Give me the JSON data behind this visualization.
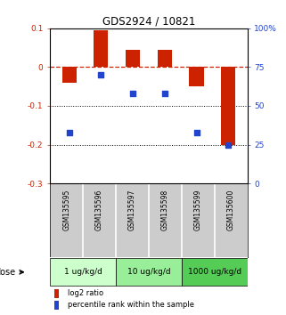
{
  "title": "GDS2924 / 10821",
  "samples": [
    "GSM135595",
    "GSM135596",
    "GSM135597",
    "GSM135598",
    "GSM135599",
    "GSM135600"
  ],
  "log2_ratio": [
    -0.04,
    0.095,
    0.045,
    0.045,
    -0.05,
    -0.2
  ],
  "percentile_rank": [
    33,
    70,
    58,
    58,
    33,
    25
  ],
  "bar_color": "#cc2200",
  "dot_color": "#2244cc",
  "ylim_left": [
    -0.3,
    0.1
  ],
  "ylim_right": [
    0,
    100
  ],
  "dose_colors": [
    "#ccffcc",
    "#99ee99",
    "#55cc55"
  ],
  "dose_labels": [
    "1 ug/kg/d",
    "10 ug/kg/d",
    "1000 ug/kg/d"
  ],
  "yticks_left": [
    0.1,
    0.0,
    -0.1,
    -0.2,
    -0.3
  ],
  "ytick_labels_left": [
    "0.1",
    "0",
    "-0.1",
    "-0.2",
    "-0.3"
  ],
  "yticks_right": [
    100,
    75,
    50,
    25,
    0
  ],
  "ytick_labels_right": [
    "100%",
    "75",
    "50",
    "25",
    "0"
  ],
  "legend_bar_label": "log2 ratio",
  "legend_dot_label": "percentile rank within the sample",
  "dose_label": "dose",
  "label_bg": "#cccccc",
  "background_color": "#ffffff"
}
